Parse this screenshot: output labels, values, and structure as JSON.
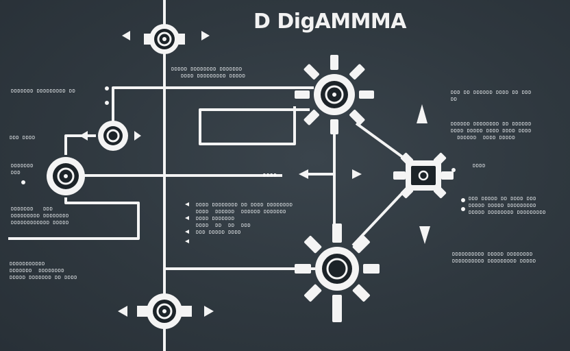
{
  "title": "D DigAMMMA",
  "colors": {
    "background": "#2f383f",
    "line": "#f4f4f4",
    "hub": "#1c2328"
  },
  "hubs": [
    {
      "id": "hub-top"
    },
    {
      "id": "hub-mid-small"
    },
    {
      "id": "hub-left"
    },
    {
      "id": "hub-upper-right"
    },
    {
      "id": "hub-right-square"
    },
    {
      "id": "hub-lower-right"
    },
    {
      "id": "hub-bottom"
    }
  ],
  "labels": {
    "tag": "DDDD"
  },
  "notes": {
    "top_center": "DDDDD DDDDDDDD DDDDDDD\n   DDDD DDDDDDDDD DDDDD",
    "left_1": "DDDDDDD DDDDDDDDD DD",
    "left_2": "DDD   DDDD",
    "left_3": "DDDDDDD\nDDD",
    "left_4": "DDDDDDD   DDD\nDDDDDDDDD DDDDDDDD\nDDDDDDDDDDDD DDDDD",
    "left_5": "DDDDDDDDDDD\nDDDDDDD  DDDDDDDD\nDDDDD DDDDDDD DD DDDD",
    "center": "DDDD DDDDDDDD DD DDDD DDDDDDDD\nDDDD  DDDDDD  DDDDDD DDDDDDD\nDDDD DDDDDDD\nDDDD  DD  DD  DDD\nDDD DDDDD DDDD",
    "right_1": "DDD DD DDDDDD DDDD DD DDD\nDD",
    "right_2": "DDDDDD DDDDDDDD DD DDDDDD\nDDDD DDDDD DDDD DDDD DDDD\n  DDDDDD  DDDD DDDDD",
    "right_3": "DDDD",
    "right_4": "DDD DDDDD DD DDDD DDD\nDDDDD DDDDD DDDDDDDDD\nDDDDD DDDDDDDD DDDDDDDDD",
    "right_5": "DDDDDDDDDD DDDDD DDDDDDDD\nDDDDDDDDDD DDDDDDDDD DDDDD"
  }
}
